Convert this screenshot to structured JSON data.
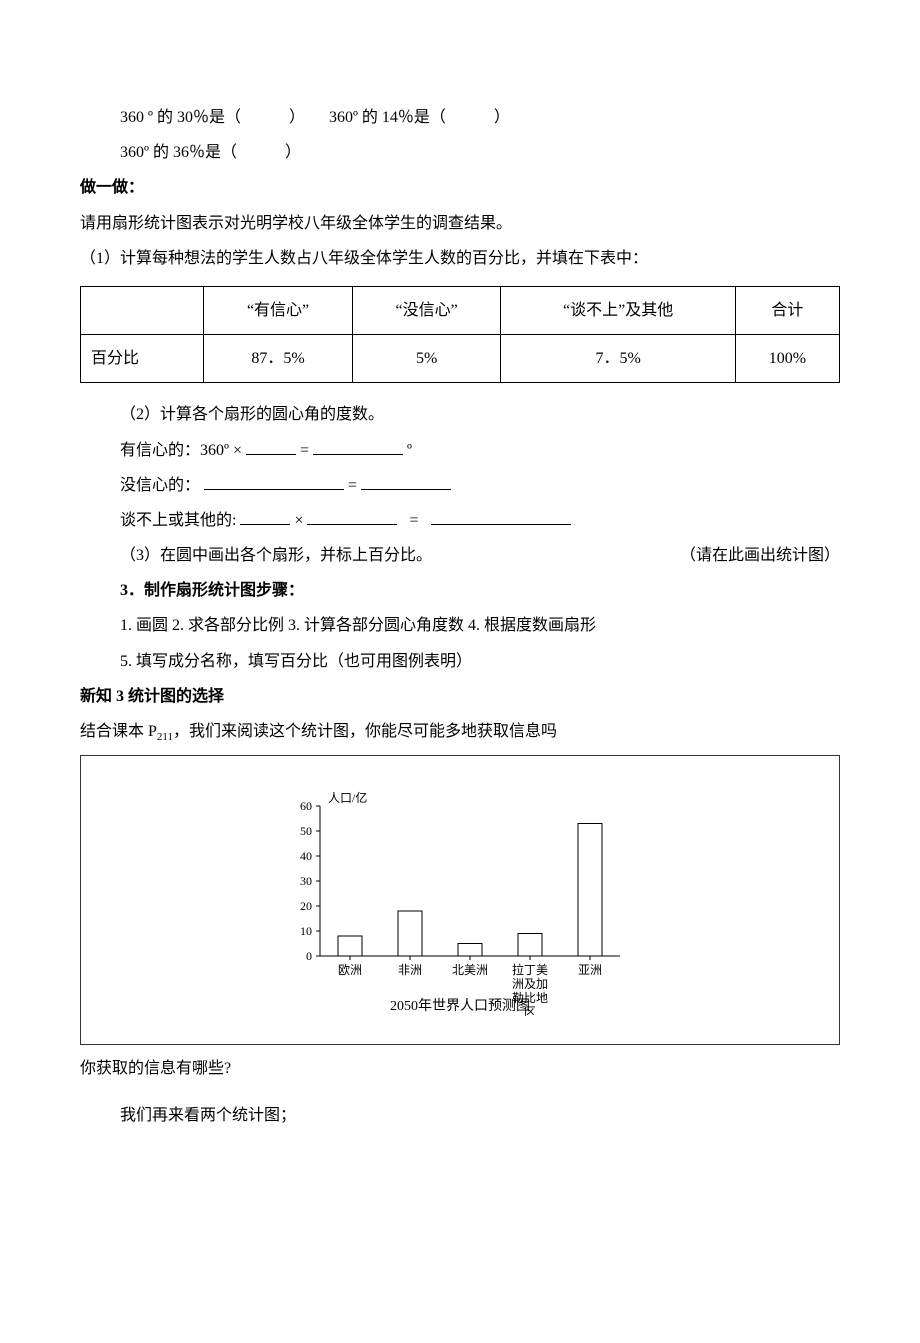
{
  "line_360_30": "360 º  的 30％是（　　　）　　360º 的 14％是（　　　）",
  "line_360_36": "360º 的 36％是（　　　）",
  "heading_do": "做一做：",
  "do_line1": "请用扇形统计图表示对光明学校八年级全体学生的调查结果。",
  "do_line2": "（1）计算每种想法的学生人数占八年级全体学生人数的百分比，并填在下表中：",
  "table": {
    "headers": [
      "",
      "“有信心”",
      "“没信心”",
      "“谈不上”及其他",
      "合计"
    ],
    "row_label": "百分比",
    "row": [
      "87．5%",
      "5%",
      "7．5%",
      "100%"
    ]
  },
  "q2_line": "（2）计算各个扇形的圆心角的度数。",
  "q2_confident_prefix": "有信心的：360º ×",
  "eq": "=",
  "deg_o": "º",
  "q2_noconf_prefix": "没信心的：",
  "q2_other_prefix": "谈不上或其他的:",
  "times": "×",
  "q3_line_left": "（3）在圆中画出各个扇形，并标上百分比。",
  "q3_line_right": "（请在此画出统计图）",
  "heading_steps": "3．制作扇形统计图步骤：",
  "steps_line1": "1. 画圆    2. 求各部分比例    3. 计算各部分圆心角度数    4. 根据度数画扇形",
  "steps_line2": "5. 填写成分名称，填写百分比（也可用图例表明）",
  "heading_xin3": "新知 3 统计图的选择",
  "xin3_intro_a": "结合课本 P",
  "xin3_sub": "211",
  "xin3_intro_b": "，我们来阅读这个统计图，你能尽可能多地获取信息吗",
  "chart": {
    "type": "bar",
    "title": "2050年世界人口预测图",
    "ylabel": "人口/亿",
    "yticks": [
      0,
      10,
      20,
      30,
      40,
      50,
      60
    ],
    "categories": [
      "欧洲",
      "非洲",
      "北美洲",
      "拉丁美洲及加勒比地区",
      "亚洲"
    ],
    "values": [
      8,
      18,
      5,
      9,
      53
    ],
    "bar_color": "#ffffff",
    "bar_border": "#000000",
    "axis_color": "#000000",
    "bg_color": "#ffffff",
    "font_size_axis": 12,
    "font_size_title": 14
  },
  "info_q": "你获取的信息有哪些?",
  "last_line": "我们再来看两个统计图；"
}
